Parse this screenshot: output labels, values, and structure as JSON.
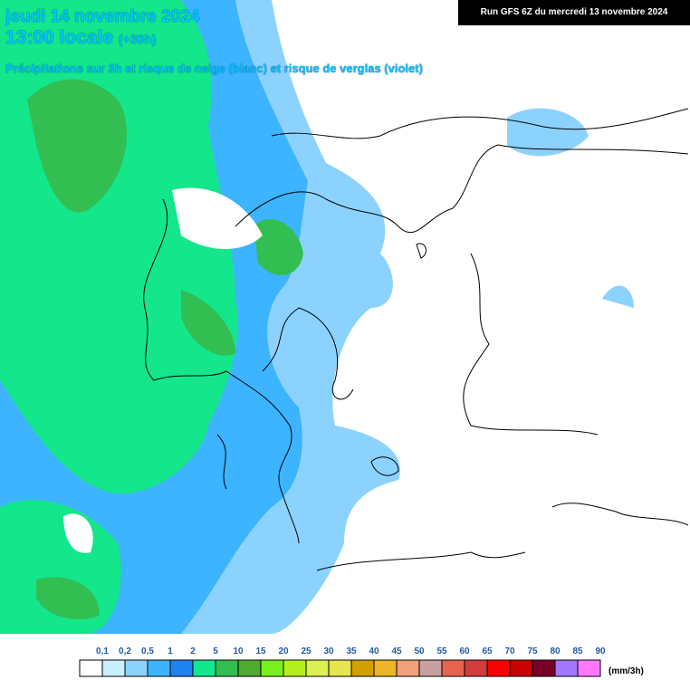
{
  "header": {
    "date": "jeudi 14 novembre 2024",
    "time": "13:00 locale",
    "offset": "(+30h)",
    "subtitle": "Précipitations sur 3h et risque de neige (blanc) et risque de verglas (violet)",
    "run": "Run GFS 6Z du mercredi 13 novembre 2024"
  },
  "legend": {
    "labels": [
      "0,1",
      "0,2",
      "0,5",
      "1",
      "2",
      "5",
      "10",
      "15",
      "20",
      "25",
      "30",
      "35",
      "40",
      "45",
      "50",
      "55",
      "60",
      "65",
      "70",
      "75",
      "80",
      "85",
      "90"
    ],
    "colors": [
      "#ffffff",
      "#c8f0ff",
      "#8cd2ff",
      "#3cb4ff",
      "#1e82f0",
      "#14e68c",
      "#32be50",
      "#50aa32",
      "#78f01e",
      "#b4f01e",
      "#dcf050",
      "#e6e650",
      "#d2a000",
      "#f0b428",
      "#f0a07a",
      "#c8a0a0",
      "#e66450",
      "#d23c3c",
      "#ff0000",
      "#c80000",
      "#780028",
      "#a078ff",
      "#ff78ff"
    ],
    "unit": "(mm/3h)"
  }
}
